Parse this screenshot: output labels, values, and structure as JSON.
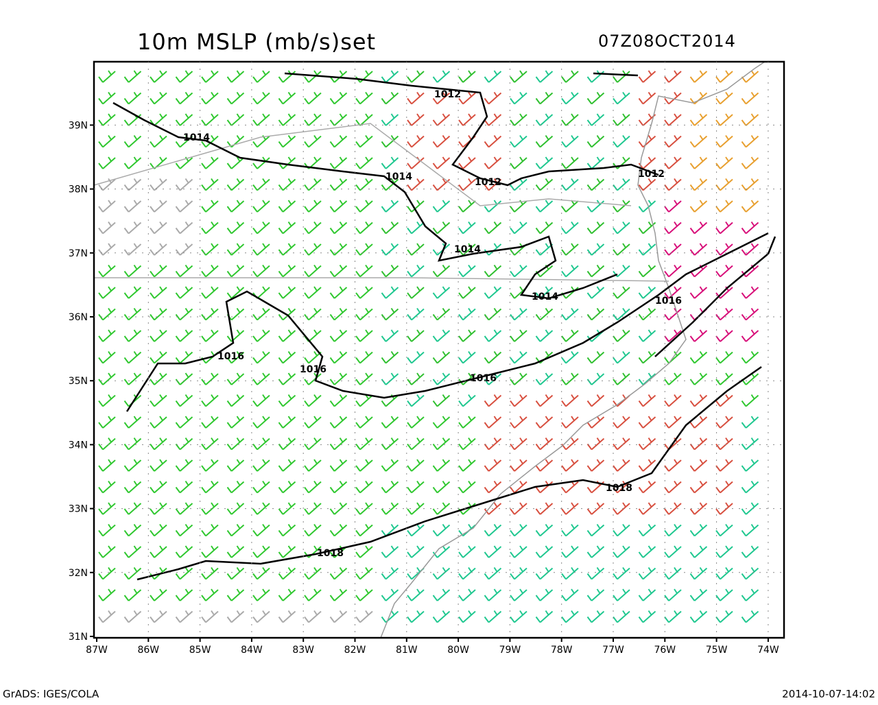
{
  "header": {
    "title": "10m MSLP (mb/s)set",
    "time": "07Z08OCT2014"
  },
  "axes": {
    "x_labels": [
      "87W",
      "86W",
      "85W",
      "84W",
      "83W",
      "82W",
      "81W",
      "80W",
      "79W",
      "78W",
      "77W",
      "76W",
      "75W",
      "74W"
    ],
    "y_labels": [
      "31N",
      "32N",
      "33N",
      "34N",
      "35N",
      "36N",
      "37N",
      "38N",
      "39N"
    ]
  },
  "contours": [
    {
      "label": 1012
    },
    {
      "label": 1014
    },
    {
      "label": 1014
    },
    {
      "label": 1012
    },
    {
      "label": 1012
    },
    {
      "label": 1014
    },
    {
      "label": 1014
    },
    {
      "label": 1016
    },
    {
      "label": 1016
    },
    {
      "label": 1016
    },
    {
      "label": 1016
    },
    {
      "label": 1018
    },
    {
      "label": 1018
    }
  ],
  "footer": {
    "left": "GrADS: IGES/COLA",
    "right": "2014-10-07-14:02"
  }
}
